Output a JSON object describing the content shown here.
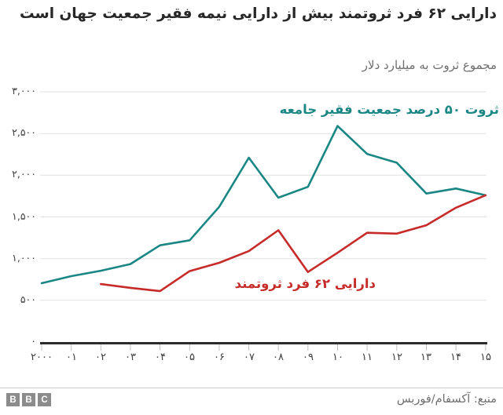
{
  "page": {
    "title": "دارایی ۶۲ فرد ثروتمند بیش از دارایی نیمه فقیر جمعیت جهان است",
    "subtitle": "مجموع ثروت به میلیارد دلار",
    "source": "منبع: آکسفام/فوربس",
    "logo_letters": [
      "B",
      "B",
      "C"
    ]
  },
  "colors": {
    "teal": "#1A8785",
    "red": "#C62B29",
    "title_text": "#272727",
    "muted_text": "#6E6E6E",
    "axis_text": "#3F3F3F",
    "grid": "#E2E2E2",
    "axis_line": "#2B2B2B",
    "tick": "#C1C1C1",
    "logo_gray": "#8C8C8C",
    "divider": "#CCCCCC"
  },
  "chart_data": {
    "type": "line",
    "title": "دارایی ۶۲ فرد ثروتمند بیش از دارایی نیمه فقیر جمعیت جهان است",
    "subtitle": "مجموع ثروت به میلیارد دلار",
    "unit": "میلیارد دلار",
    "x": [
      2000,
      2001,
      2002,
      2003,
      2004,
      2005,
      2006,
      2007,
      2008,
      2009,
      2010,
      2011,
      2012,
      2013,
      2014,
      2015
    ],
    "x_tick_labels": [
      "۲۰۰۰",
      "۰۱",
      "۰۲",
      "۰۳",
      "۰۴",
      "۰۵",
      "۰۶",
      "۰۷",
      "۰۸",
      "۰۹",
      "۱۰",
      "۱۱",
      "۱۲",
      "۱۳",
      "۱۴",
      "۱۵"
    ],
    "y_ticks": [
      3000,
      2500,
      2000,
      1500,
      1000,
      500,
      0
    ],
    "y_tick_labels": [
      "۳,۰۰۰",
      "۲,۵۰۰",
      "۲,۰۰۰",
      "۱,۵۰۰",
      "۱,۰۰۰",
      "۵۰۰",
      "۰"
    ],
    "ylim": [
      0,
      3000
    ],
    "grid": "horizontal",
    "legend_position": "inline-labels",
    "series": [
      {
        "name": "ثروت ۵۰ درصد جمعیت فقیر جامعه",
        "color_key": "teal",
        "values": [
          705,
          790,
          855,
          935,
          1160,
          1220,
          1620,
          2210,
          1730,
          1860,
          2590,
          2255,
          2150,
          1780,
          1840,
          1760
        ]
      },
      {
        "name": "دارایی ۶۲ فرد ثروتمند",
        "color_key": "red",
        "values": [
          null,
          null,
          695,
          650,
          610,
          850,
          950,
          1090,
          1340,
          840,
          1070,
          1310,
          1300,
          1400,
          1610,
          1760
        ]
      }
    ],
    "layout": {
      "x0": 53,
      "x_step": 37.65,
      "y_zero": 436,
      "y_per_unit": 0.1063333,
      "grid_x1": 51,
      "grid_x2": 619,
      "axis_y": 437.5,
      "tick_y1": 439,
      "tick_y2": 447
    }
  }
}
